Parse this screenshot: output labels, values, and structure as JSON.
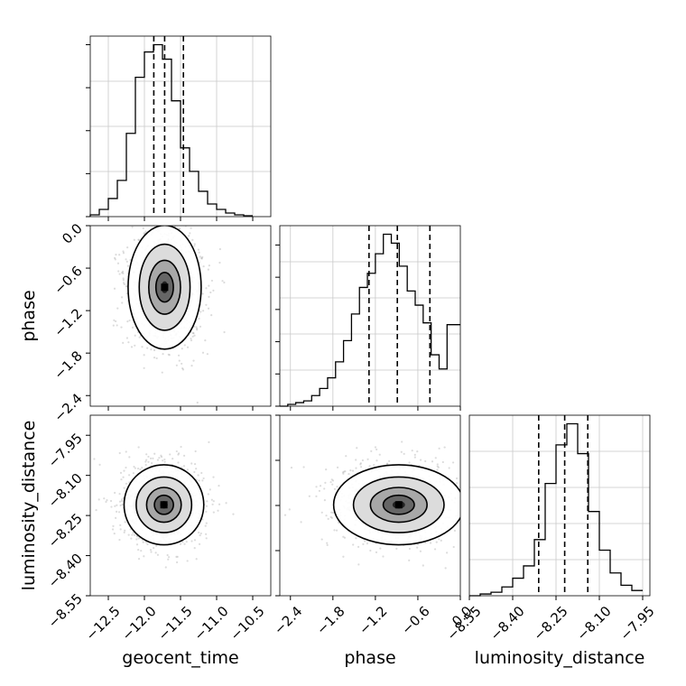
{
  "chart_data": [
    {
      "type": "histogram",
      "panel": "geocent_time",
      "xlim": [
        -12.75,
        -10.25
      ],
      "x_ticks": [
        -12.5,
        -12.0,
        -11.5,
        -11.0,
        -10.5
      ],
      "x_tick_labels": [
        "−12.5",
        "−12.0",
        "−11.5",
        "−11.0",
        "−10.5"
      ],
      "bin_edges": [
        -12.75,
        -12.625,
        -12.5,
        -12.375,
        -12.25,
        -12.125,
        -12.0,
        -11.875,
        -11.75,
        -11.625,
        -11.5,
        -11.375,
        -11.25,
        -11.125,
        -11.0,
        -10.875,
        -10.75,
        -10.625,
        -10.5
      ],
      "counts": [
        0.01,
        0.04,
        0.1,
        0.2,
        0.46,
        0.77,
        0.91,
        0.95,
        0.87,
        0.64,
        0.38,
        0.25,
        0.14,
        0.07,
        0.04,
        0.02,
        0.01,
        0.005
      ],
      "quantiles": [
        -11.87,
        -11.72,
        -11.46
      ],
      "grid": true
    },
    {
      "type": "scatter-density",
      "panel": "geocent_time vs phase",
      "xlim": [
        -12.75,
        -10.25
      ],
      "ylim": [
        -2.55,
        0.0
      ],
      "y_ticks": [
        0.0,
        -0.6,
        -1.2,
        -1.8,
        -2.4
      ],
      "y_tick_labels": [
        "0.0",
        "−0.6",
        "−1.2",
        "−1.8",
        "−2.4"
      ],
      "center": [
        -11.72,
        -0.87
      ],
      "spread": [
        0.22,
        0.38
      ],
      "ylabel": "phase"
    },
    {
      "type": "histogram",
      "panel": "phase",
      "xlim": [
        -2.55,
        0.0
      ],
      "bin_edges": [
        -2.55,
        -2.4375,
        -2.325,
        -2.2125,
        -2.1,
        -1.9875,
        -1.875,
        -1.7625,
        -1.65,
        -1.5375,
        -1.425,
        -1.3125,
        -1.2,
        -1.0875,
        -0.975,
        -0.8625,
        -0.75,
        -0.6375,
        -0.525,
        -0.4125,
        -0.3,
        -0.1875,
        -0.075,
        0.0
      ],
      "counts": [
        0.0,
        0.01,
        0.02,
        0.03,
        0.06,
        0.1,
        0.16,
        0.25,
        0.37,
        0.52,
        0.67,
        0.75,
        0.86,
        0.97,
        0.92,
        0.79,
        0.65,
        0.57,
        0.47,
        0.29,
        0.21,
        0.46,
        0.46
      ],
      "quantiles": [
        -1.29,
        -0.89,
        -0.43
      ],
      "grid": true
    },
    {
      "type": "scatter-density",
      "panel": "geocent_time vs luminosity_distance",
      "xlim": [
        -12.75,
        -10.25
      ],
      "ylim": [
        -8.55,
        -7.875
      ],
      "y_ticks": [
        -7.95,
        -8.1,
        -8.25,
        -8.4,
        -8.55
      ],
      "y_tick_labels": [
        "−7.95",
        "−8.10",
        "−8.25",
        "−8.40",
        "−8.55"
      ],
      "x_ticks": [
        -12.5,
        -12.0,
        -11.5,
        -11.0,
        -10.5
      ],
      "x_tick_labels": [
        "−12.5",
        "−12.0",
        "−11.5",
        "−11.0",
        "−10.5"
      ],
      "center": [
        -11.73,
        -8.21
      ],
      "spread": [
        0.24,
        0.065
      ],
      "xlabel": "geocent_time",
      "ylabel": "luminosity_distance"
    },
    {
      "type": "scatter-density",
      "panel": "phase vs luminosity_distance",
      "xlim": [
        -2.55,
        0.0
      ],
      "ylim": [
        -8.55,
        -7.875
      ],
      "x_ticks": [
        -2.4,
        -1.8,
        -1.2,
        -0.6,
        0.0
      ],
      "x_tick_labels": [
        "−2.4",
        "−1.8",
        "−1.2",
        "−0.6",
        "0.0"
      ],
      "center": [
        -0.87,
        -8.21
      ],
      "spread": [
        0.4,
        0.065
      ],
      "xlabel": "phase"
    },
    {
      "type": "histogram",
      "panel": "luminosity_distance",
      "xlim": [
        -8.55,
        -7.925
      ],
      "x_ticks": [
        -8.55,
        -8.4,
        -8.25,
        -8.1,
        -7.95
      ],
      "x_tick_labels": [
        "−8.55",
        "−8.40",
        "−8.25",
        "−8.10",
        "−7.95"
      ],
      "bin_edges": [
        -8.55,
        -8.5125,
        -8.475,
        -8.4375,
        -8.4,
        -8.3625,
        -8.325,
        -8.2875,
        -8.25,
        -8.2125,
        -8.175,
        -8.1375,
        -8.1,
        -8.0625,
        -8.025,
        -7.9875,
        -7.95
      ],
      "counts": [
        0.0,
        0.01,
        0.02,
        0.05,
        0.1,
        0.17,
        0.32,
        0.64,
        0.86,
        0.98,
        0.81,
        0.48,
        0.26,
        0.13,
        0.06,
        0.03
      ],
      "quantiles": [
        -8.31,
        -8.22,
        -8.14
      ],
      "grid": true,
      "xlabel": "luminosity_distance"
    }
  ]
}
